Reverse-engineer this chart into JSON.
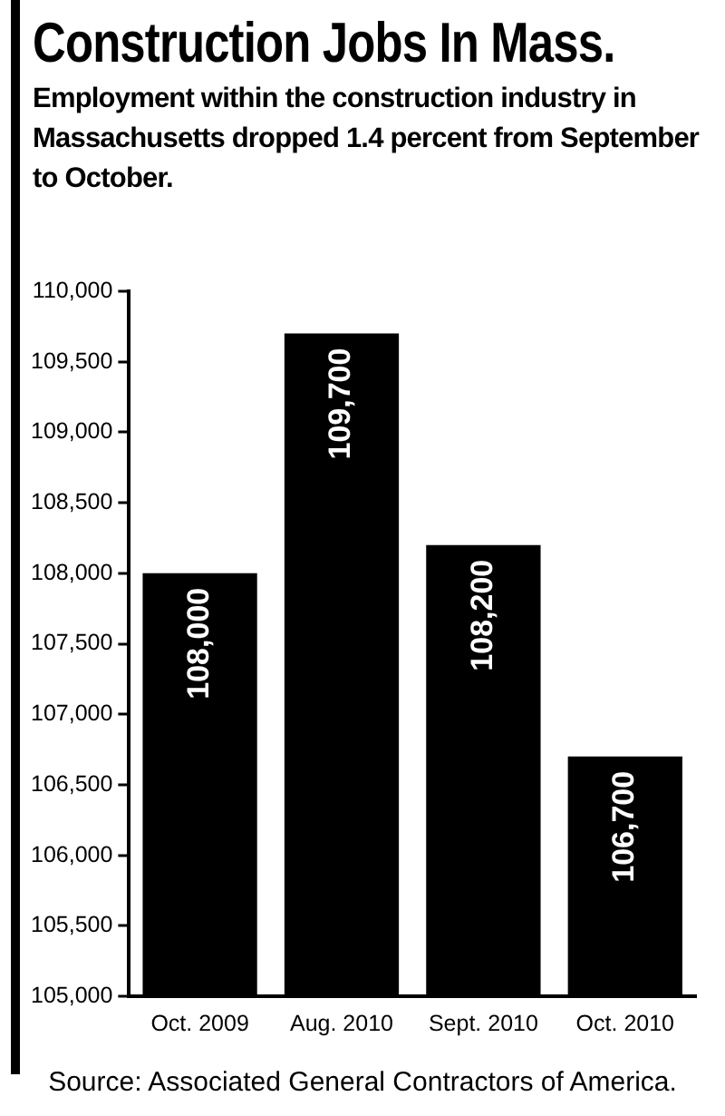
{
  "chart_data": {
    "type": "bar",
    "title": "Construction Jobs In Mass.",
    "subtitle": "Employment within the construction industry in Massachusetts dropped 1.4 percent from September to October.",
    "categories": [
      "Oct. 2009",
      "Aug. 2010",
      "Sept. 2010",
      "Oct. 2010"
    ],
    "values": [
      108000,
      109700,
      108200,
      106700
    ],
    "value_labels": [
      "108,000",
      "109,700",
      "108,200",
      "106,700"
    ],
    "color": "#000000",
    "ylim": [
      105000,
      110000
    ],
    "yticks": [
      {
        "value": 105000,
        "label": "105,000"
      },
      {
        "value": 105500,
        "label": "105,500"
      },
      {
        "value": 106000,
        "label": "106,000"
      },
      {
        "value": 106500,
        "label": "106,500"
      },
      {
        "value": 107000,
        "label": "107,000"
      },
      {
        "value": 107500,
        "label": "107,500"
      },
      {
        "value": 108000,
        "label": "108,000"
      },
      {
        "value": 108500,
        "label": "108,500"
      },
      {
        "value": 109000,
        "label": "109,000"
      },
      {
        "value": 109500,
        "label": "109,500"
      },
      {
        "value": 110000,
        "label": "110,000"
      }
    ],
    "grid": false,
    "legend": false,
    "annotations": [
      "Source: Associated General Contractors of America."
    ]
  }
}
